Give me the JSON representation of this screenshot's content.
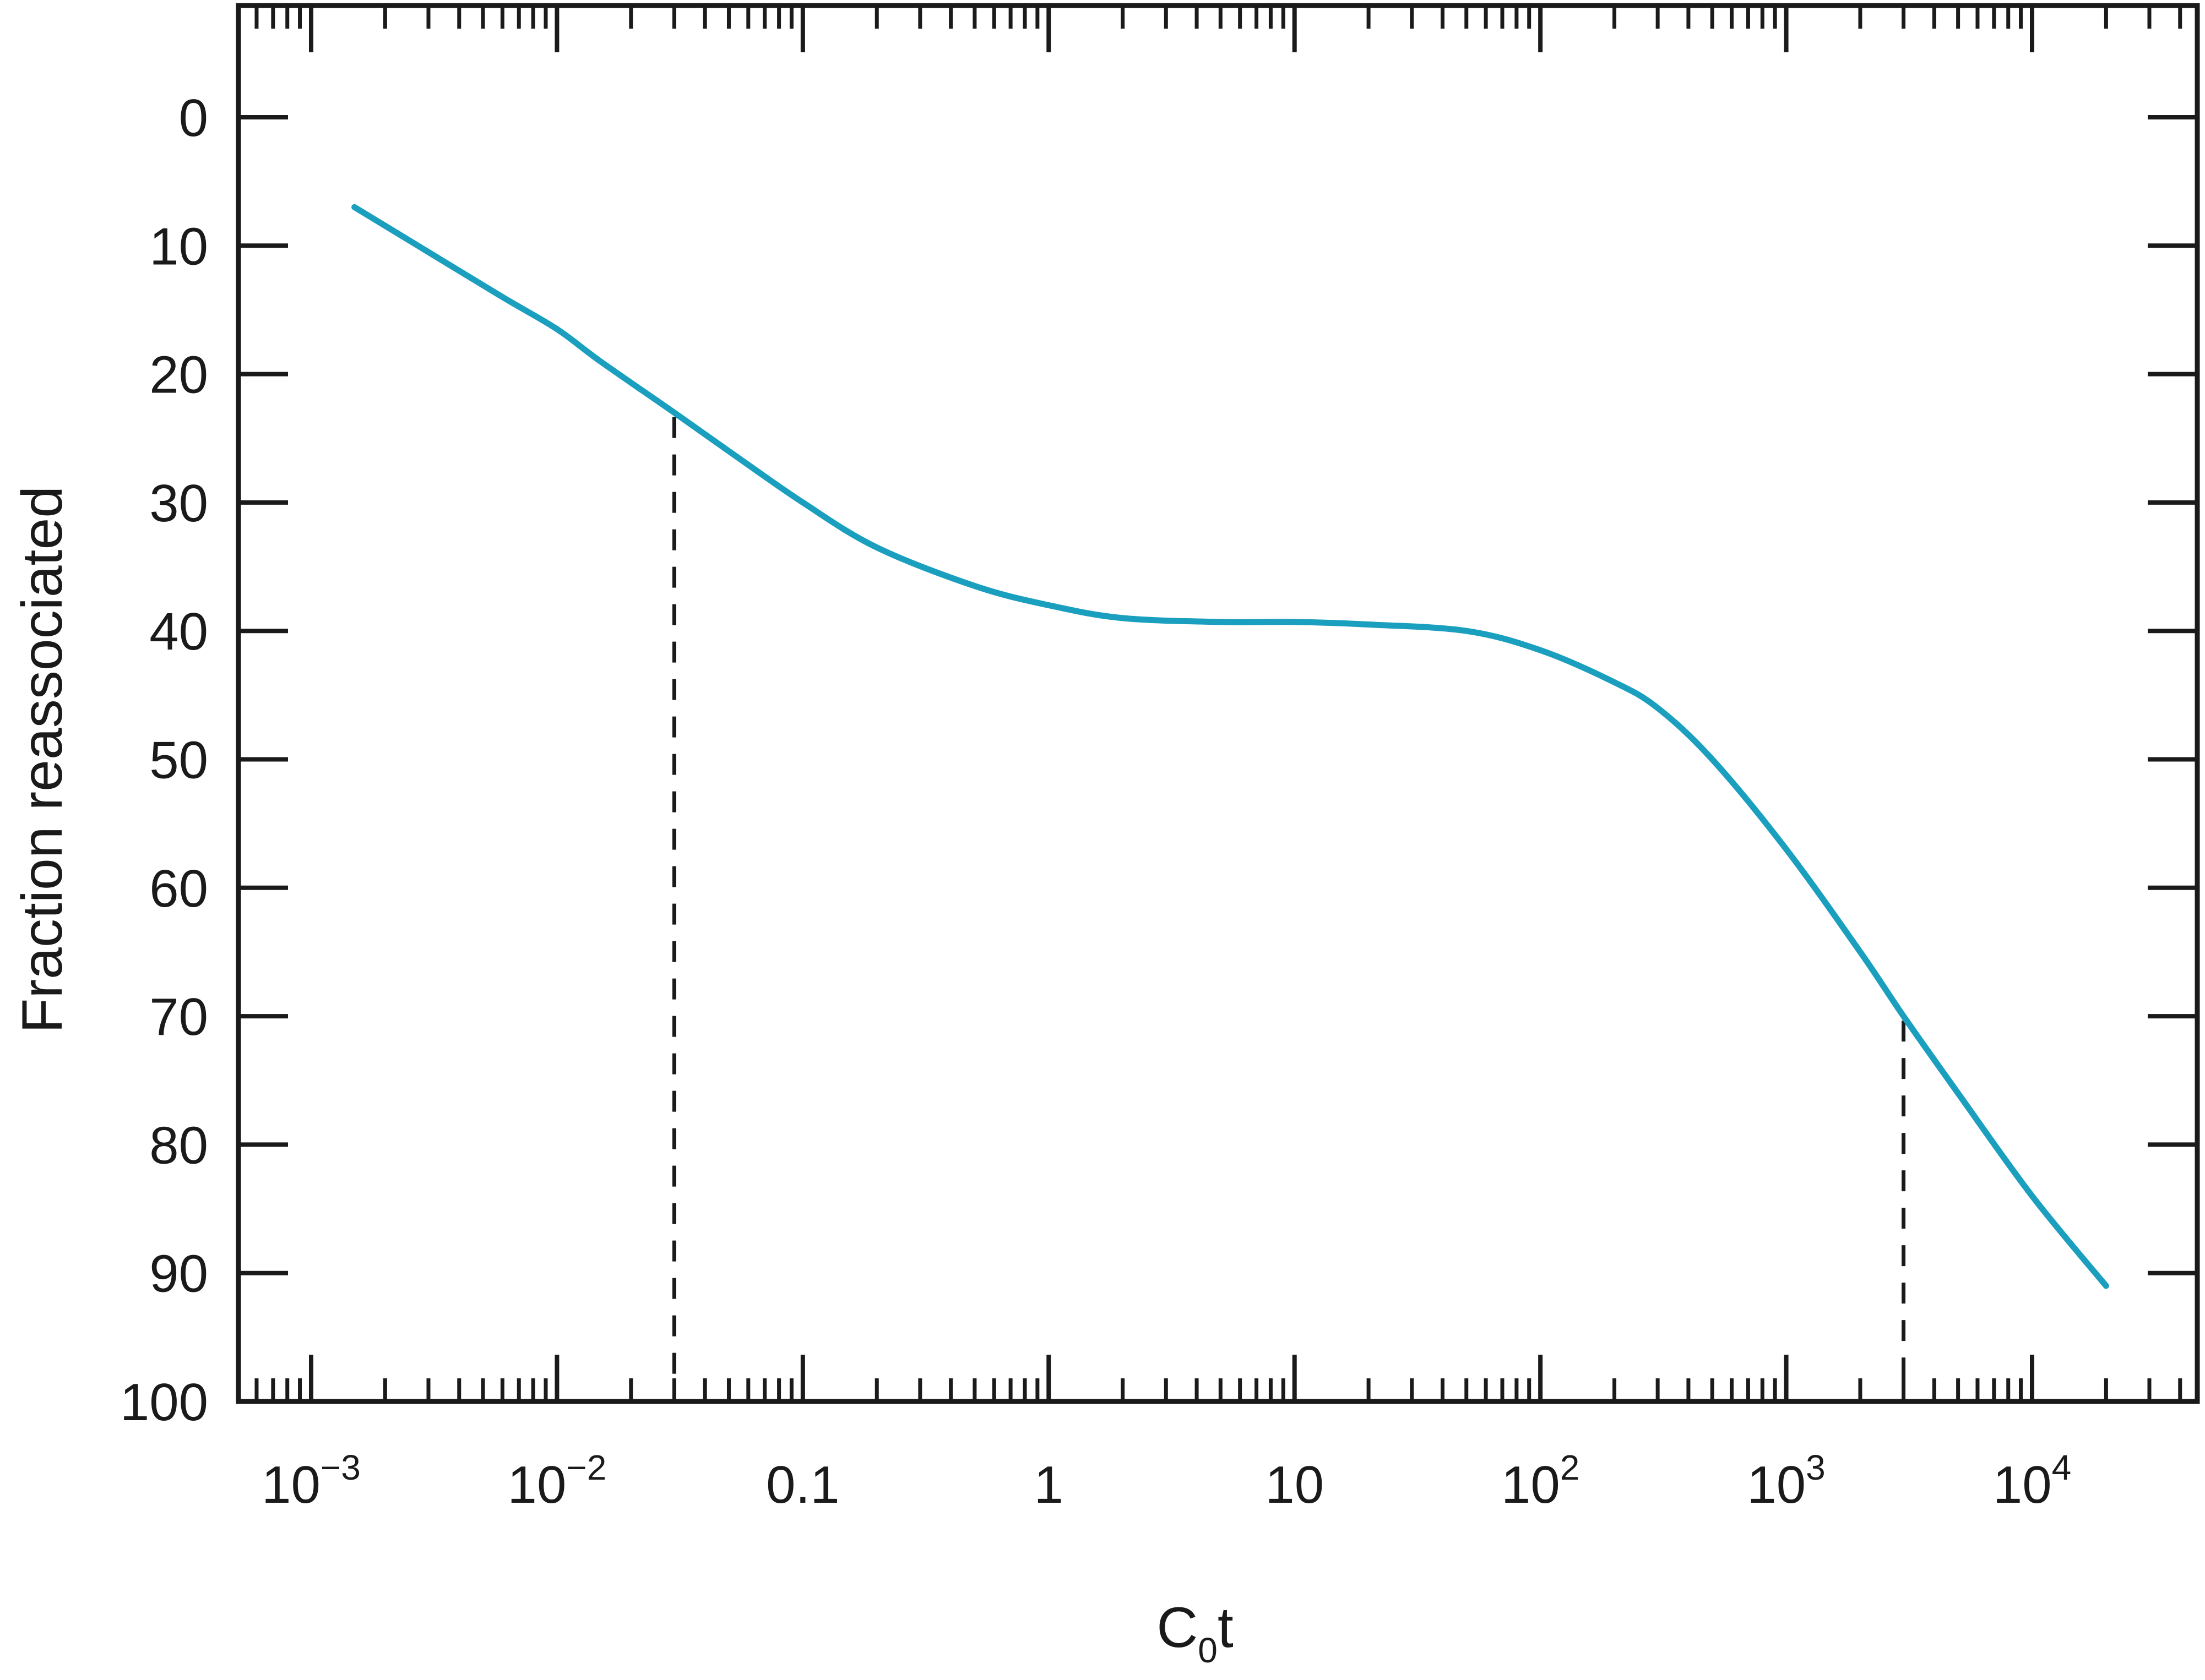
{
  "chart_data": {
    "type": "line",
    "xscale": "log",
    "xlim": [
      0.0005,
      30000
    ],
    "ylim": [
      0,
      100
    ],
    "y_inverted": true,
    "xlabel": {
      "main": "C",
      "sub": "0",
      "tail": "t"
    },
    "ylabel": "Fraction reassociated",
    "x_ticks": [
      {
        "value": 0.001,
        "label": {
          "base": "10",
          "exp": "−3"
        }
      },
      {
        "value": 0.01,
        "label": {
          "base": "10",
          "exp": "−2"
        }
      },
      {
        "value": 0.1,
        "label": {
          "base": "0.1",
          "exp": ""
        }
      },
      {
        "value": 1,
        "label": {
          "base": "1",
          "exp": ""
        }
      },
      {
        "value": 10,
        "label": {
          "base": "10",
          "exp": ""
        }
      },
      {
        "value": 100,
        "label": {
          "base": "10",
          "exp": "2"
        }
      },
      {
        "value": 1000,
        "label": {
          "base": "10",
          "exp": "3"
        }
      },
      {
        "value": 10000,
        "label": {
          "base": "10",
          "exp": "4"
        }
      }
    ],
    "y_ticks": [
      {
        "value": 0,
        "label": "0"
      },
      {
        "value": 10,
        "label": "10"
      },
      {
        "value": 20,
        "label": "20"
      },
      {
        "value": 30,
        "label": "30"
      },
      {
        "value": 40,
        "label": "40"
      },
      {
        "value": 50,
        "label": "50"
      },
      {
        "value": 60,
        "label": "60"
      },
      {
        "value": 70,
        "label": "70"
      },
      {
        "value": 80,
        "label": "80"
      },
      {
        "value": 90,
        "label": "90"
      },
      {
        "value": 100,
        "label": "100"
      }
    ],
    "series": [
      {
        "color": "#1b9fbe",
        "x": [
          0.0015,
          0.003,
          0.006,
          0.01,
          0.015,
          0.03,
          0.05,
          0.1,
          0.2,
          0.5,
          1,
          2,
          5,
          10,
          20,
          50,
          100,
          200,
          300,
          500,
          1000,
          2000,
          3000,
          5000,
          10000,
          20000
        ],
        "y": [
          7,
          10.5,
          14,
          16.5,
          19,
          23,
          26,
          30,
          33.5,
          36.5,
          38,
          39,
          39.3,
          39.3,
          39.5,
          40,
          41.5,
          44,
          46,
          50,
          57,
          65,
          70,
          76,
          84,
          91
        ]
      }
    ],
    "reference_lines": [
      {
        "style": "dashed",
        "x": 0.03,
        "y_from": 23,
        "y_to": 100
      },
      {
        "style": "dashed",
        "x": 3000,
        "y_from": 70,
        "y_to": 100
      }
    ],
    "grid": false,
    "legend": "none"
  }
}
